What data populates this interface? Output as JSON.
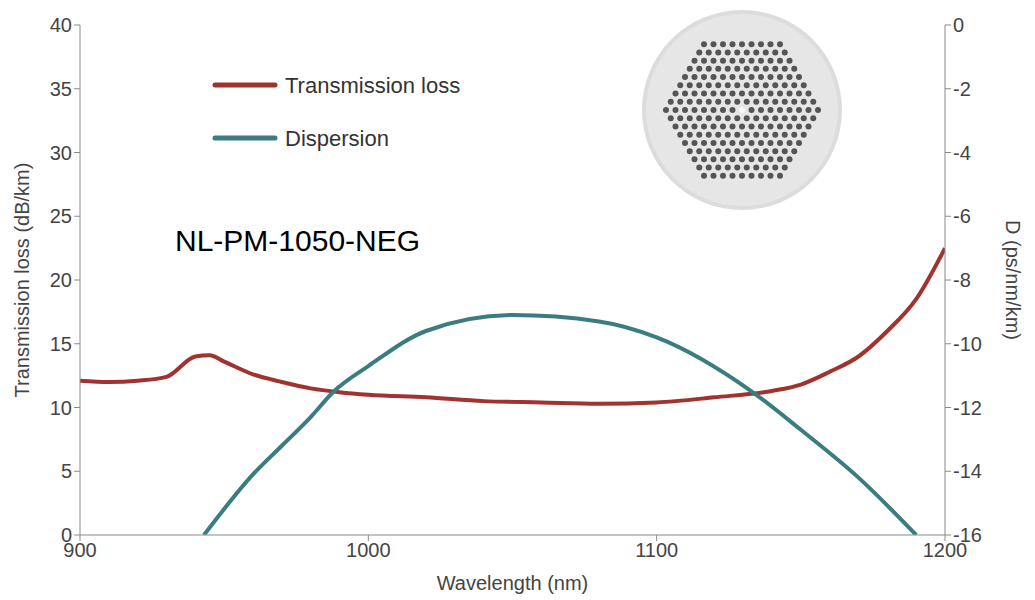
{
  "chart_data": {
    "type": "line",
    "annotation": "NL-PM-1050-NEG",
    "x_label": "Wavelength (nm)",
    "y_label": "Transmission loss (dB/km)",
    "y2_label": "D (ps/nm/km)",
    "xlim": [
      900,
      1200
    ],
    "xticks": [
      900,
      1000,
      1100,
      1200
    ],
    "ylim": [
      0,
      40
    ],
    "yticks": [
      0,
      5,
      10,
      15,
      20,
      25,
      30,
      35,
      40
    ],
    "y2lim": [
      -16,
      0
    ],
    "y2ticks": [
      -16,
      -14,
      -12,
      -10,
      -8,
      -6,
      -4,
      -2,
      0
    ],
    "grid": false,
    "legend": "upper left",
    "series": [
      {
        "name": "Transmission loss",
        "color": "#a0322f",
        "x": [
          900,
          910,
          920,
          930,
          940,
          945,
          950,
          960,
          970,
          980,
          990,
          1000,
          1020,
          1040,
          1060,
          1080,
          1100,
          1120,
          1140,
          1150,
          1160,
          1170,
          1180,
          1190,
          1200
        ],
        "values": [
          12.1,
          12.0,
          12.1,
          12.4,
          14.0,
          14.1,
          13.6,
          12.6,
          12.0,
          11.5,
          11.2,
          11.0,
          10.8,
          10.5,
          10.4,
          10.3,
          10.4,
          10.8,
          11.3,
          11.8,
          12.8,
          14.0,
          16.0,
          18.5,
          22.5
        ]
      },
      {
        "name": "Dispersion",
        "color": "#3a7c80",
        "axis": "y2",
        "x": [
          943,
          960,
          970,
          980,
          988,
          1000,
          1020,
          1050,
          1080,
          1100,
          1133,
          1150,
          1170,
          1190
        ],
        "values": [
          -16.0,
          -14.1,
          -13.2,
          -12.3,
          -11.5,
          -10.7,
          -9.6,
          -9.1,
          -9.3,
          -9.8,
          -11.5,
          -12.7,
          -14.2,
          -16.0
        ]
      }
    ]
  }
}
